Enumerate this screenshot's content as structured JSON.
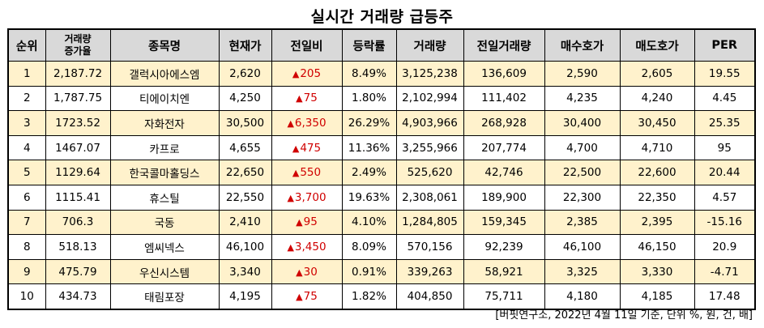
{
  "title": "실시간 거래량 급등주",
  "headers": {
    "rank": "순위",
    "growth_line1": "거래량",
    "growth_line2": "증가율",
    "name": "종목명",
    "price": "현재가",
    "change": "전일비",
    "rate": "등락률",
    "volume": "거래량",
    "prev_volume": "전일거래량",
    "bid": "매수호가",
    "ask": "매도호가",
    "per": "PER"
  },
  "up_arrow": "▲",
  "rows": [
    {
      "rank": "1",
      "growth": "2,187.72",
      "name": "갤럭시아에스엠",
      "price": "2,620",
      "change": "205",
      "rate": "8.49%",
      "volume": "3,125,238",
      "prev_volume": "136,609",
      "bid": "2,590",
      "ask": "2,605",
      "per": "19.55"
    },
    {
      "rank": "2",
      "growth": "1,787.75",
      "name": "티에이치엔",
      "price": "4,250",
      "change": "75",
      "rate": "1.80%",
      "volume": "2,102,994",
      "prev_volume": "111,402",
      "bid": "4,235",
      "ask": "4,240",
      "per": "4.45"
    },
    {
      "rank": "3",
      "growth": "1723.52",
      "name": "자화전자",
      "price": "30,500",
      "change": "6,350",
      "rate": "26.29%",
      "volume": "4,903,966",
      "prev_volume": "268,928",
      "bid": "30,400",
      "ask": "30,450",
      "per": "25.35"
    },
    {
      "rank": "4",
      "growth": "1467.07",
      "name": "카프로",
      "price": "4,655",
      "change": "475",
      "rate": "11.36%",
      "volume": "3,255,966",
      "prev_volume": "207,774",
      "bid": "4,700",
      "ask": "4,710",
      "per": "95"
    },
    {
      "rank": "5",
      "growth": "1129.64",
      "name": "한국콜마홀딩스",
      "price": "22,650",
      "change": "550",
      "rate": "2.49%",
      "volume": "525,620",
      "prev_volume": "42,746",
      "bid": "22,500",
      "ask": "22,600",
      "per": "20.44"
    },
    {
      "rank": "6",
      "growth": "1115.41",
      "name": "휴스틸",
      "price": "22,550",
      "change": "3,700",
      "rate": "19.63%",
      "volume": "2,308,061",
      "prev_volume": "189,900",
      "bid": "22,300",
      "ask": "22,350",
      "per": "4.57"
    },
    {
      "rank": "7",
      "growth": "706.3",
      "name": "국동",
      "price": "2,410",
      "change": "95",
      "rate": "4.10%",
      "volume": "1,284,805",
      "prev_volume": "159,345",
      "bid": "2,385",
      "ask": "2,395",
      "per": "-15.16"
    },
    {
      "rank": "8",
      "growth": "518.13",
      "name": "엠씨넥스",
      "price": "46,100",
      "change": "3,450",
      "rate": "8.09%",
      "volume": "570,156",
      "prev_volume": "92,239",
      "bid": "46,100",
      "ask": "46,150",
      "per": "20.9"
    },
    {
      "rank": "9",
      "growth": "475.79",
      "name": "우신시스템",
      "price": "3,340",
      "change": "30",
      "rate": "0.91%",
      "volume": "339,263",
      "prev_volume": "58,921",
      "bid": "3,325",
      "ask": "3,330",
      "per": "-4.71"
    },
    {
      "rank": "10",
      "growth": "434.73",
      "name": "태림포장",
      "price": "4,195",
      "change": "75",
      "rate": "1.82%",
      "volume": "404,850",
      "prev_volume": "75,711",
      "bid": "4,180",
      "ask": "4,185",
      "per": "17.48"
    }
  ],
  "source": "[버핏연구소, 2022년 4월 11일 기준, 단위 %, 원, 건, 배]",
  "colors": {
    "header_bg": "#d9d9d9",
    "highlight_row_bg": "#fff2cc",
    "up_color": "#d00000"
  }
}
